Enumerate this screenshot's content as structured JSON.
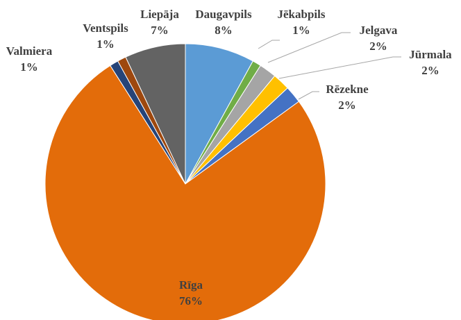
{
  "chart_data": {
    "type": "pie",
    "categories": [
      "Daugavpils",
      "Jēkabpils",
      "Jelgava",
      "Jūrmala",
      "Rēzekne",
      "Rīga",
      "Valmiera",
      "Ventspils",
      "Liepāja"
    ],
    "values": [
      8,
      1,
      2,
      2,
      2,
      76,
      1,
      1,
      7
    ],
    "value_labels": [
      "8%",
      "1%",
      "2%",
      "2%",
      "2%",
      "76%",
      "1%",
      "1%",
      "7%"
    ],
    "colors": [
      "#5b9bd5",
      "#70ad47",
      "#a5a5a5",
      "#ffc000",
      "#4472c4",
      "#e36c0a",
      "#264478",
      "#9e480e",
      "#636363"
    ]
  }
}
